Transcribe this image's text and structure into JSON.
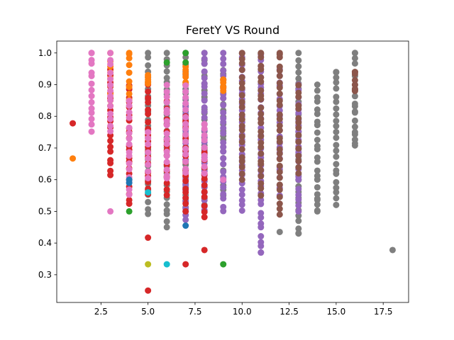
{
  "chart_data": {
    "type": "scatter",
    "title": "FeretY VS Round",
    "xlabel": "",
    "ylabel": "",
    "xlim": [
      0.15,
      18.85
    ],
    "ylim": [
      0.2125,
      1.0375
    ],
    "xticks": [
      2.5,
      5.0,
      7.5,
      10.0,
      12.5,
      15.0,
      17.5
    ],
    "xtick_labels": [
      "2.5",
      "5.0",
      "7.5",
      "10.0",
      "12.5",
      "15.0",
      "17.5"
    ],
    "yticks": [
      0.3,
      0.4,
      0.5,
      0.6,
      0.7,
      0.8,
      0.9,
      1.0
    ],
    "ytick_labels": [
      "0.3",
      "0.4",
      "0.5",
      "0.6",
      "0.7",
      "0.8",
      "0.9",
      "1.0"
    ],
    "grid": false,
    "legend": "none",
    "marker_colors": {
      "blue": "#1f77b4",
      "orange": "#ff7f0e",
      "green": "#2ca02c",
      "red": "#d62728",
      "purple": "#9467bd",
      "brown": "#8c564b",
      "pink": "#e377c2",
      "gray": "#7f7f7f",
      "olive": "#bcbd22",
      "cyan": "#17becf"
    },
    "series": [
      {
        "color": "#7f7f7f",
        "columns": [
          {
            "x": 5,
            "min": 0.49,
            "max": 1.0
          },
          {
            "x": 6,
            "min": 0.45,
            "max": 1.0
          },
          {
            "x": 7,
            "min": 0.5,
            "max": 1.0
          },
          {
            "x": 8,
            "min": 0.52,
            "max": 1.0
          },
          {
            "x": 9,
            "min": 0.55,
            "max": 0.95
          },
          {
            "x": 13,
            "min": 0.43,
            "max": 1.0
          },
          {
            "x": 14,
            "min": 0.5,
            "max": 0.9
          },
          {
            "x": 15,
            "min": 0.52,
            "max": 0.94
          },
          {
            "x": 16,
            "min": 0.71,
            "max": 1.0
          }
        ]
      },
      {
        "color": "#9467bd",
        "columns": [
          {
            "x": 7,
            "min": 0.47,
            "max": 0.9
          },
          {
            "x": 8,
            "min": 0.5,
            "max": 1.0
          },
          {
            "x": 9,
            "min": 0.5,
            "max": 1.0
          },
          {
            "x": 10,
            "min": 0.5,
            "max": 1.0
          },
          {
            "x": 11,
            "min": 0.37,
            "max": 1.0
          },
          {
            "x": 12,
            "min": 0.55,
            "max": 0.95
          },
          {
            "x": 13,
            "min": 0.5,
            "max": 0.9
          }
        ]
      },
      {
        "color": "#8c564b",
        "columns": [
          {
            "x": 10,
            "min": 0.6,
            "max": 1.0
          },
          {
            "x": 11,
            "min": 0.55,
            "max": 1.0
          },
          {
            "x": 12,
            "min": 0.49,
            "max": 1.0
          },
          {
            "x": 13,
            "min": 0.62,
            "max": 0.9
          },
          {
            "x": 16,
            "min": 0.88,
            "max": 0.94
          }
        ]
      },
      {
        "color": "#d62728",
        "columns": [
          {
            "x": 3,
            "min": 0.61,
            "max": 0.95
          },
          {
            "x": 4,
            "min": 0.52,
            "max": 0.9
          },
          {
            "x": 5,
            "min": 0.55,
            "max": 0.9
          },
          {
            "x": 6,
            "min": 0.55,
            "max": 0.85
          },
          {
            "x": 7,
            "min": 0.5,
            "max": 0.8
          },
          {
            "x": 8,
            "min": 0.48,
            "max": 0.7
          }
        ]
      },
      {
        "color": "#ff7f0e",
        "columns": [
          {
            "x": 3,
            "min": 0.85,
            "max": 1.0
          },
          {
            "x": 4,
            "min": 0.85,
            "max": 1.0
          },
          {
            "x": 5,
            "min": 0.9,
            "max": 0.93
          },
          {
            "x": 7,
            "min": 0.9,
            "max": 0.96
          },
          {
            "x": 9,
            "min": 0.88,
            "max": 0.92
          }
        ]
      },
      {
        "color": "#e377c2",
        "columns": [
          {
            "x": 2,
            "min": 0.75,
            "max": 1.0
          },
          {
            "x": 3,
            "min": 0.75,
            "max": 0.98
          },
          {
            "x": 4,
            "min": 0.55,
            "max": 0.85
          },
          {
            "x": 5,
            "min": 0.6,
            "max": 0.75
          },
          {
            "x": 6,
            "min": 0.6,
            "max": 0.9
          },
          {
            "x": 7,
            "min": 0.62,
            "max": 0.9
          },
          {
            "x": 8,
            "min": 0.62,
            "max": 0.78
          }
        ]
      }
    ],
    "points": [
      {
        "x": 1,
        "y": 0.778,
        "color": "#d62728"
      },
      {
        "x": 1,
        "y": 0.667,
        "color": "#ff7f0e"
      },
      {
        "x": 3,
        "y": 0.5,
        "color": "#e377c2"
      },
      {
        "x": 4,
        "y": 0.5,
        "color": "#2ca02c"
      },
      {
        "x": 4,
        "y": 0.6,
        "color": "#1f77b4"
      },
      {
        "x": 4,
        "y": 0.59,
        "color": "#1f77b4"
      },
      {
        "x": 5,
        "y": 0.417,
        "color": "#d62728"
      },
      {
        "x": 5,
        "y": 0.333,
        "color": "#bcbd22"
      },
      {
        "x": 5,
        "y": 0.25,
        "color": "#d62728"
      },
      {
        "x": 5,
        "y": 0.56,
        "color": "#17becf"
      },
      {
        "x": 6,
        "y": 0.333,
        "color": "#17becf"
      },
      {
        "x": 6,
        "y": 0.97,
        "color": "#2ca02c"
      },
      {
        "x": 7,
        "y": 0.455,
        "color": "#1f77b4"
      },
      {
        "x": 7,
        "y": 0.333,
        "color": "#d62728"
      },
      {
        "x": 7,
        "y": 1.0,
        "color": "#2ca02c"
      },
      {
        "x": 7,
        "y": 0.97,
        "color": "#2ca02c"
      },
      {
        "x": 8,
        "y": 0.378,
        "color": "#d62728"
      },
      {
        "x": 9,
        "y": 0.333,
        "color": "#2ca02c"
      },
      {
        "x": 9,
        "y": 0.6,
        "color": "#e377c2"
      },
      {
        "x": 11,
        "y": 0.37,
        "color": "#9467bd"
      },
      {
        "x": 12,
        "y": 0.435,
        "color": "#7f7f7f"
      },
      {
        "x": 13,
        "y": 0.43,
        "color": "#7f7f7f"
      },
      {
        "x": 14,
        "y": 0.54,
        "color": "#7f7f7f"
      },
      {
        "x": 14,
        "y": 0.5,
        "color": "#7f7f7f"
      },
      {
        "x": 16,
        "y": 1.0,
        "color": "#7f7f7f"
      },
      {
        "x": 16,
        "y": 0.94,
        "color": "#8c564b"
      },
      {
        "x": 16,
        "y": 0.885,
        "color": "#8c564b"
      },
      {
        "x": 16,
        "y": 0.815,
        "color": "#7f7f7f"
      },
      {
        "x": 16,
        "y": 0.75,
        "color": "#7f7f7f"
      },
      {
        "x": 16,
        "y": 0.708,
        "color": "#7f7f7f"
      },
      {
        "x": 18,
        "y": 0.378,
        "color": "#7f7f7f"
      },
      {
        "x": 2,
        "y": 1.0,
        "color": "#e377c2"
      },
      {
        "x": 3,
        "y": 1.0,
        "color": "#e377c2"
      },
      {
        "x": 4,
        "y": 1.0,
        "color": "#ff7f0e"
      },
      {
        "x": 10,
        "y": 1.0,
        "color": "#8c564b"
      },
      {
        "x": 11,
        "y": 1.0,
        "color": "#8c564b"
      },
      {
        "x": 12,
        "y": 1.0,
        "color": "#8c564b"
      },
      {
        "x": 15,
        "y": 0.94,
        "color": "#7f7f7f"
      }
    ]
  }
}
